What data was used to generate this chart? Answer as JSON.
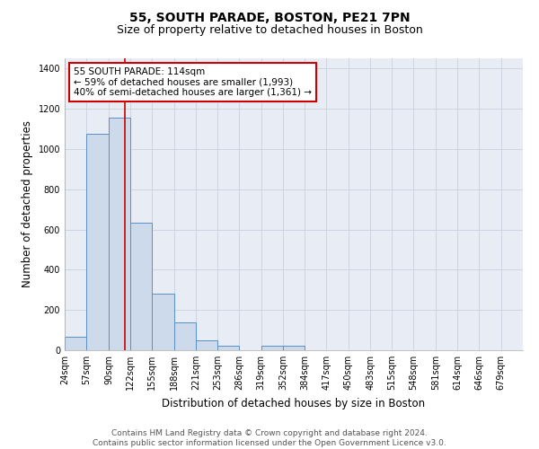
{
  "title1": "55, SOUTH PARADE, BOSTON, PE21 7PN",
  "title2": "Size of property relative to detached houses in Boston",
  "xlabel": "Distribution of detached houses by size in Boston",
  "ylabel": "Number of detached properties",
  "bar_color": "#ccdaeb",
  "bar_edge_color": "#5b8fc9",
  "bin_labels": [
    "24sqm",
    "57sqm",
    "90sqm",
    "122sqm",
    "155sqm",
    "188sqm",
    "221sqm",
    "253sqm",
    "286sqm",
    "319sqm",
    "352sqm",
    "384sqm",
    "417sqm",
    "450sqm",
    "483sqm",
    "515sqm",
    "548sqm",
    "581sqm",
    "614sqm",
    "646sqm",
    "679sqm"
  ],
  "bin_edges": [
    24,
    57,
    90,
    122,
    155,
    188,
    221,
    253,
    286,
    319,
    352,
    384,
    417,
    450,
    483,
    515,
    548,
    581,
    614,
    646,
    679,
    712
  ],
  "bar_heights": [
    65,
    1075,
    1155,
    635,
    280,
    140,
    47,
    22,
    0,
    22,
    22,
    0,
    0,
    0,
    0,
    0,
    0,
    0,
    0,
    0,
    0
  ],
  "vline_x": 114,
  "vline_color": "#cc0000",
  "annotation_line1": "55 SOUTH PARADE: 114sqm",
  "annotation_line2": "← 59% of detached houses are smaller (1,993)",
  "annotation_line3": "40% of semi-detached houses are larger (1,361) →",
  "annotation_box_color": "#ffffff",
  "annotation_box_edge_color": "#cc0000",
  "ylim": [
    0,
    1450
  ],
  "yticks": [
    0,
    200,
    400,
    600,
    800,
    1000,
    1200,
    1400
  ],
  "grid_color": "#c8d0de",
  "background_color": "#e8edf5",
  "footer_text": "Contains HM Land Registry data © Crown copyright and database right 2024.\nContains public sector information licensed under the Open Government Licence v3.0.",
  "title1_fontsize": 10,
  "title2_fontsize": 9,
  "xlabel_fontsize": 8.5,
  "ylabel_fontsize": 8.5,
  "tick_fontsize": 7,
  "annotation_fontsize": 7.5,
  "footer_fontsize": 6.5
}
